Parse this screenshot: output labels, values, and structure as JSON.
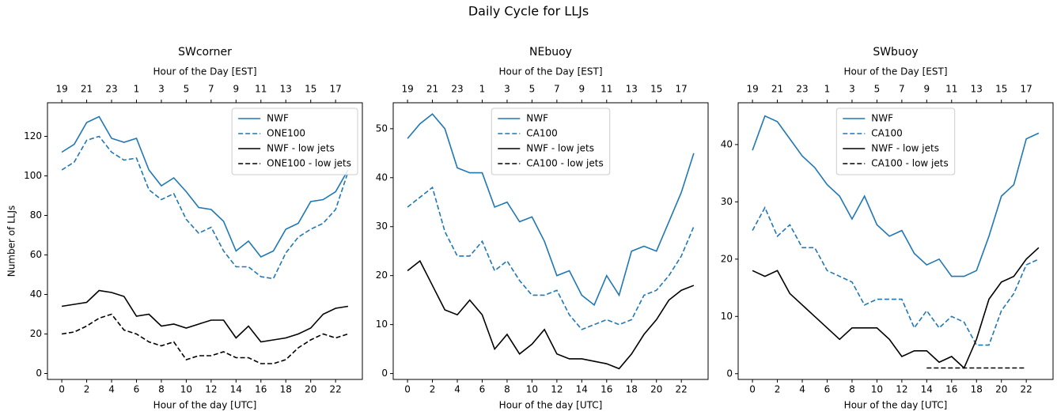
{
  "title": "Daily Cycle for LLJs",
  "chart_data": [
    {
      "type": "line",
      "title": "SWcorner",
      "xlabel": "Hour of the day [UTC]",
      "ylabel": "Number of LLJs",
      "x2label": "Hour of the Day [EST]",
      "x": [
        0,
        1,
        2,
        3,
        4,
        5,
        6,
        7,
        8,
        9,
        10,
        11,
        12,
        13,
        14,
        15,
        16,
        17,
        18,
        19,
        20,
        21,
        22,
        23
      ],
      "xlim": [
        -1.15,
        24.15
      ],
      "xticks": [
        0,
        2,
        4,
        6,
        8,
        10,
        12,
        14,
        16,
        18,
        20,
        22
      ],
      "x2ticks": [
        {
          "value": 0,
          "label": "19"
        },
        {
          "value": 2,
          "label": "21"
        },
        {
          "value": 4,
          "label": "23"
        },
        {
          "value": 6,
          "label": "1"
        },
        {
          "value": 8,
          "label": "3"
        },
        {
          "value": 10,
          "label": "5"
        },
        {
          "value": 12,
          "label": "7"
        },
        {
          "value": 14,
          "label": "9"
        },
        {
          "value": 16,
          "label": "11"
        },
        {
          "value": 18,
          "label": "13"
        },
        {
          "value": 20,
          "label": "15"
        },
        {
          "value": 22,
          "label": "17"
        }
      ],
      "ylim": [
        -3,
        137
      ],
      "yticks": [
        0,
        20,
        40,
        60,
        80,
        100,
        120
      ],
      "legend": "upper right",
      "series": [
        {
          "name": "NWF",
          "color": "#1f77b4",
          "linestyle": "solid",
          "values": [
            112,
            116,
            127,
            130,
            119,
            117,
            119,
            103,
            95,
            99,
            92,
            84,
            83,
            77,
            62,
            67,
            59,
            62,
            73,
            76,
            87,
            88,
            92,
            103
          ]
        },
        {
          "name": "ONE100",
          "color": "#1f77b4",
          "linestyle": "dashed",
          "values": [
            103,
            107,
            118,
            120,
            112,
            108,
            109,
            93,
            88,
            91,
            78,
            71,
            74,
            62,
            54,
            54,
            49,
            48,
            61,
            69,
            73,
            76,
            83,
            102
          ]
        },
        {
          "name": "NWF - low jets",
          "color": "#000000",
          "linestyle": "solid",
          "values": [
            34,
            35,
            36,
            42,
            41,
            39,
            29,
            30,
            24,
            25,
            23,
            25,
            27,
            27,
            18,
            24,
            16,
            17,
            18,
            20,
            23,
            30,
            33,
            34
          ]
        },
        {
          "name": "ONE100 - low jets",
          "color": "#000000",
          "linestyle": "dashed",
          "values": [
            20,
            21,
            24,
            28,
            30,
            22,
            20,
            16,
            14,
            16,
            7,
            9,
            9,
            11,
            8,
            8,
            5,
            5,
            7,
            13,
            17,
            20,
            18,
            20
          ]
        }
      ]
    },
    {
      "type": "line",
      "title": "NEbuoy",
      "xlabel": "Hour of the day [UTC]",
      "x2label": "Hour of the Day [EST]",
      "x": [
        0,
        1,
        2,
        3,
        4,
        5,
        6,
        7,
        8,
        9,
        10,
        11,
        12,
        13,
        14,
        15,
        16,
        17,
        18,
        19,
        20,
        21,
        22,
        23
      ],
      "xlim": [
        -1.15,
        24.15
      ],
      "xticks": [
        0,
        2,
        4,
        6,
        8,
        10,
        12,
        14,
        16,
        18,
        20,
        22
      ],
      "x2ticks": [
        {
          "value": 0,
          "label": "19"
        },
        {
          "value": 2,
          "label": "21"
        },
        {
          "value": 4,
          "label": "23"
        },
        {
          "value": 6,
          "label": "1"
        },
        {
          "value": 8,
          "label": "3"
        },
        {
          "value": 10,
          "label": "5"
        },
        {
          "value": 12,
          "label": "7"
        },
        {
          "value": 14,
          "label": "9"
        },
        {
          "value": 16,
          "label": "11"
        },
        {
          "value": 18,
          "label": "13"
        },
        {
          "value": 20,
          "label": "15"
        },
        {
          "value": 22,
          "label": "17"
        }
      ],
      "ylim": [
        -1.2,
        55.3
      ],
      "yticks": [
        0,
        10,
        20,
        30,
        40,
        50
      ],
      "legend": "upper center",
      "series": [
        {
          "name": "NWF",
          "color": "#1f77b4",
          "linestyle": "solid",
          "values": [
            48,
            51,
            53,
            50,
            42,
            41,
            41,
            34,
            35,
            31,
            32,
            27,
            20,
            21,
            16,
            14,
            20,
            16,
            25,
            26,
            25,
            31,
            37,
            45
          ]
        },
        {
          "name": "CA100",
          "color": "#1f77b4",
          "linestyle": "dashed",
          "values": [
            34,
            36,
            38,
            29,
            24,
            24,
            27,
            21,
            23,
            19,
            16,
            16,
            17,
            12,
            9,
            10,
            11,
            10,
            11,
            16,
            17,
            20,
            24,
            30
          ]
        },
        {
          "name": "NWF - low jets",
          "color": "#000000",
          "linestyle": "solid",
          "values": [
            21,
            23,
            18,
            13,
            12,
            15,
            12,
            5,
            8,
            4,
            6,
            9,
            4,
            3,
            3,
            2.5,
            2,
            1,
            4,
            8,
            11,
            15,
            17,
            18
          ]
        },
        {
          "name": "CA100 - low jets",
          "color": "#000000",
          "linestyle": "dashed",
          "values": [
            null,
            null,
            null,
            null,
            null,
            null,
            null,
            null,
            null,
            null,
            null,
            null,
            null,
            null,
            null,
            null,
            null,
            null,
            null,
            null,
            null,
            null,
            null,
            null
          ]
        }
      ]
    },
    {
      "type": "line",
      "title": "SWbuoy",
      "xlabel": "Hour of the day [UTC]",
      "x2label": "Hour of the Day [EST]",
      "x": [
        0,
        1,
        2,
        3,
        4,
        5,
        6,
        7,
        8,
        9,
        10,
        11,
        12,
        13,
        14,
        15,
        16,
        17,
        18,
        19,
        20,
        21,
        22,
        23
      ],
      "xlim": [
        -1.15,
        24.15
      ],
      "xticks": [
        0,
        2,
        4,
        6,
        8,
        10,
        12,
        14,
        16,
        18,
        20,
        22
      ],
      "x2ticks": [
        {
          "value": 0,
          "label": "19"
        },
        {
          "value": 2,
          "label": "21"
        },
        {
          "value": 4,
          "label": "23"
        },
        {
          "value": 6,
          "label": "1"
        },
        {
          "value": 8,
          "label": "3"
        },
        {
          "value": 10,
          "label": "5"
        },
        {
          "value": 12,
          "label": "7"
        },
        {
          "value": 14,
          "label": "9"
        },
        {
          "value": 16,
          "label": "11"
        },
        {
          "value": 18,
          "label": "13"
        },
        {
          "value": 20,
          "label": "15"
        },
        {
          "value": 22,
          "label": "17"
        }
      ],
      "ylim": [
        -1,
        47.3
      ],
      "yticks": [
        0,
        10,
        20,
        30,
        40
      ],
      "legend": "upper center",
      "series": [
        {
          "name": "NWF",
          "color": "#1f77b4",
          "linestyle": "solid",
          "values": [
            39,
            45,
            44,
            41,
            38,
            36,
            33,
            31,
            27,
            31,
            26,
            24,
            25,
            21,
            19,
            20,
            17,
            17,
            18,
            24,
            31,
            33,
            41,
            42
          ]
        },
        {
          "name": "CA100",
          "color": "#1f77b4",
          "linestyle": "dashed",
          "values": [
            25,
            29,
            24,
            26,
            22,
            22,
            18,
            17,
            16,
            12,
            13,
            13,
            13,
            8,
            11,
            8,
            10,
            9,
            5,
            5,
            11,
            14,
            19,
            20
          ]
        },
        {
          "name": "NWF - low jets",
          "color": "#000000",
          "linestyle": "solid",
          "values": [
            18,
            17,
            18,
            14,
            12,
            10,
            8,
            6,
            8,
            8,
            8,
            6,
            3,
            4,
            4,
            2,
            3,
            1,
            6,
            13,
            16,
            17,
            20,
            22
          ]
        },
        {
          "name": "CA100 - low jets",
          "color": "#000000",
          "linestyle": "dashed",
          "values": [
            null,
            null,
            null,
            null,
            null,
            null,
            null,
            null,
            null,
            null,
            null,
            null,
            null,
            null,
            1,
            1,
            1,
            1,
            1,
            1,
            1,
            1,
            1,
            null
          ]
        }
      ]
    }
  ]
}
